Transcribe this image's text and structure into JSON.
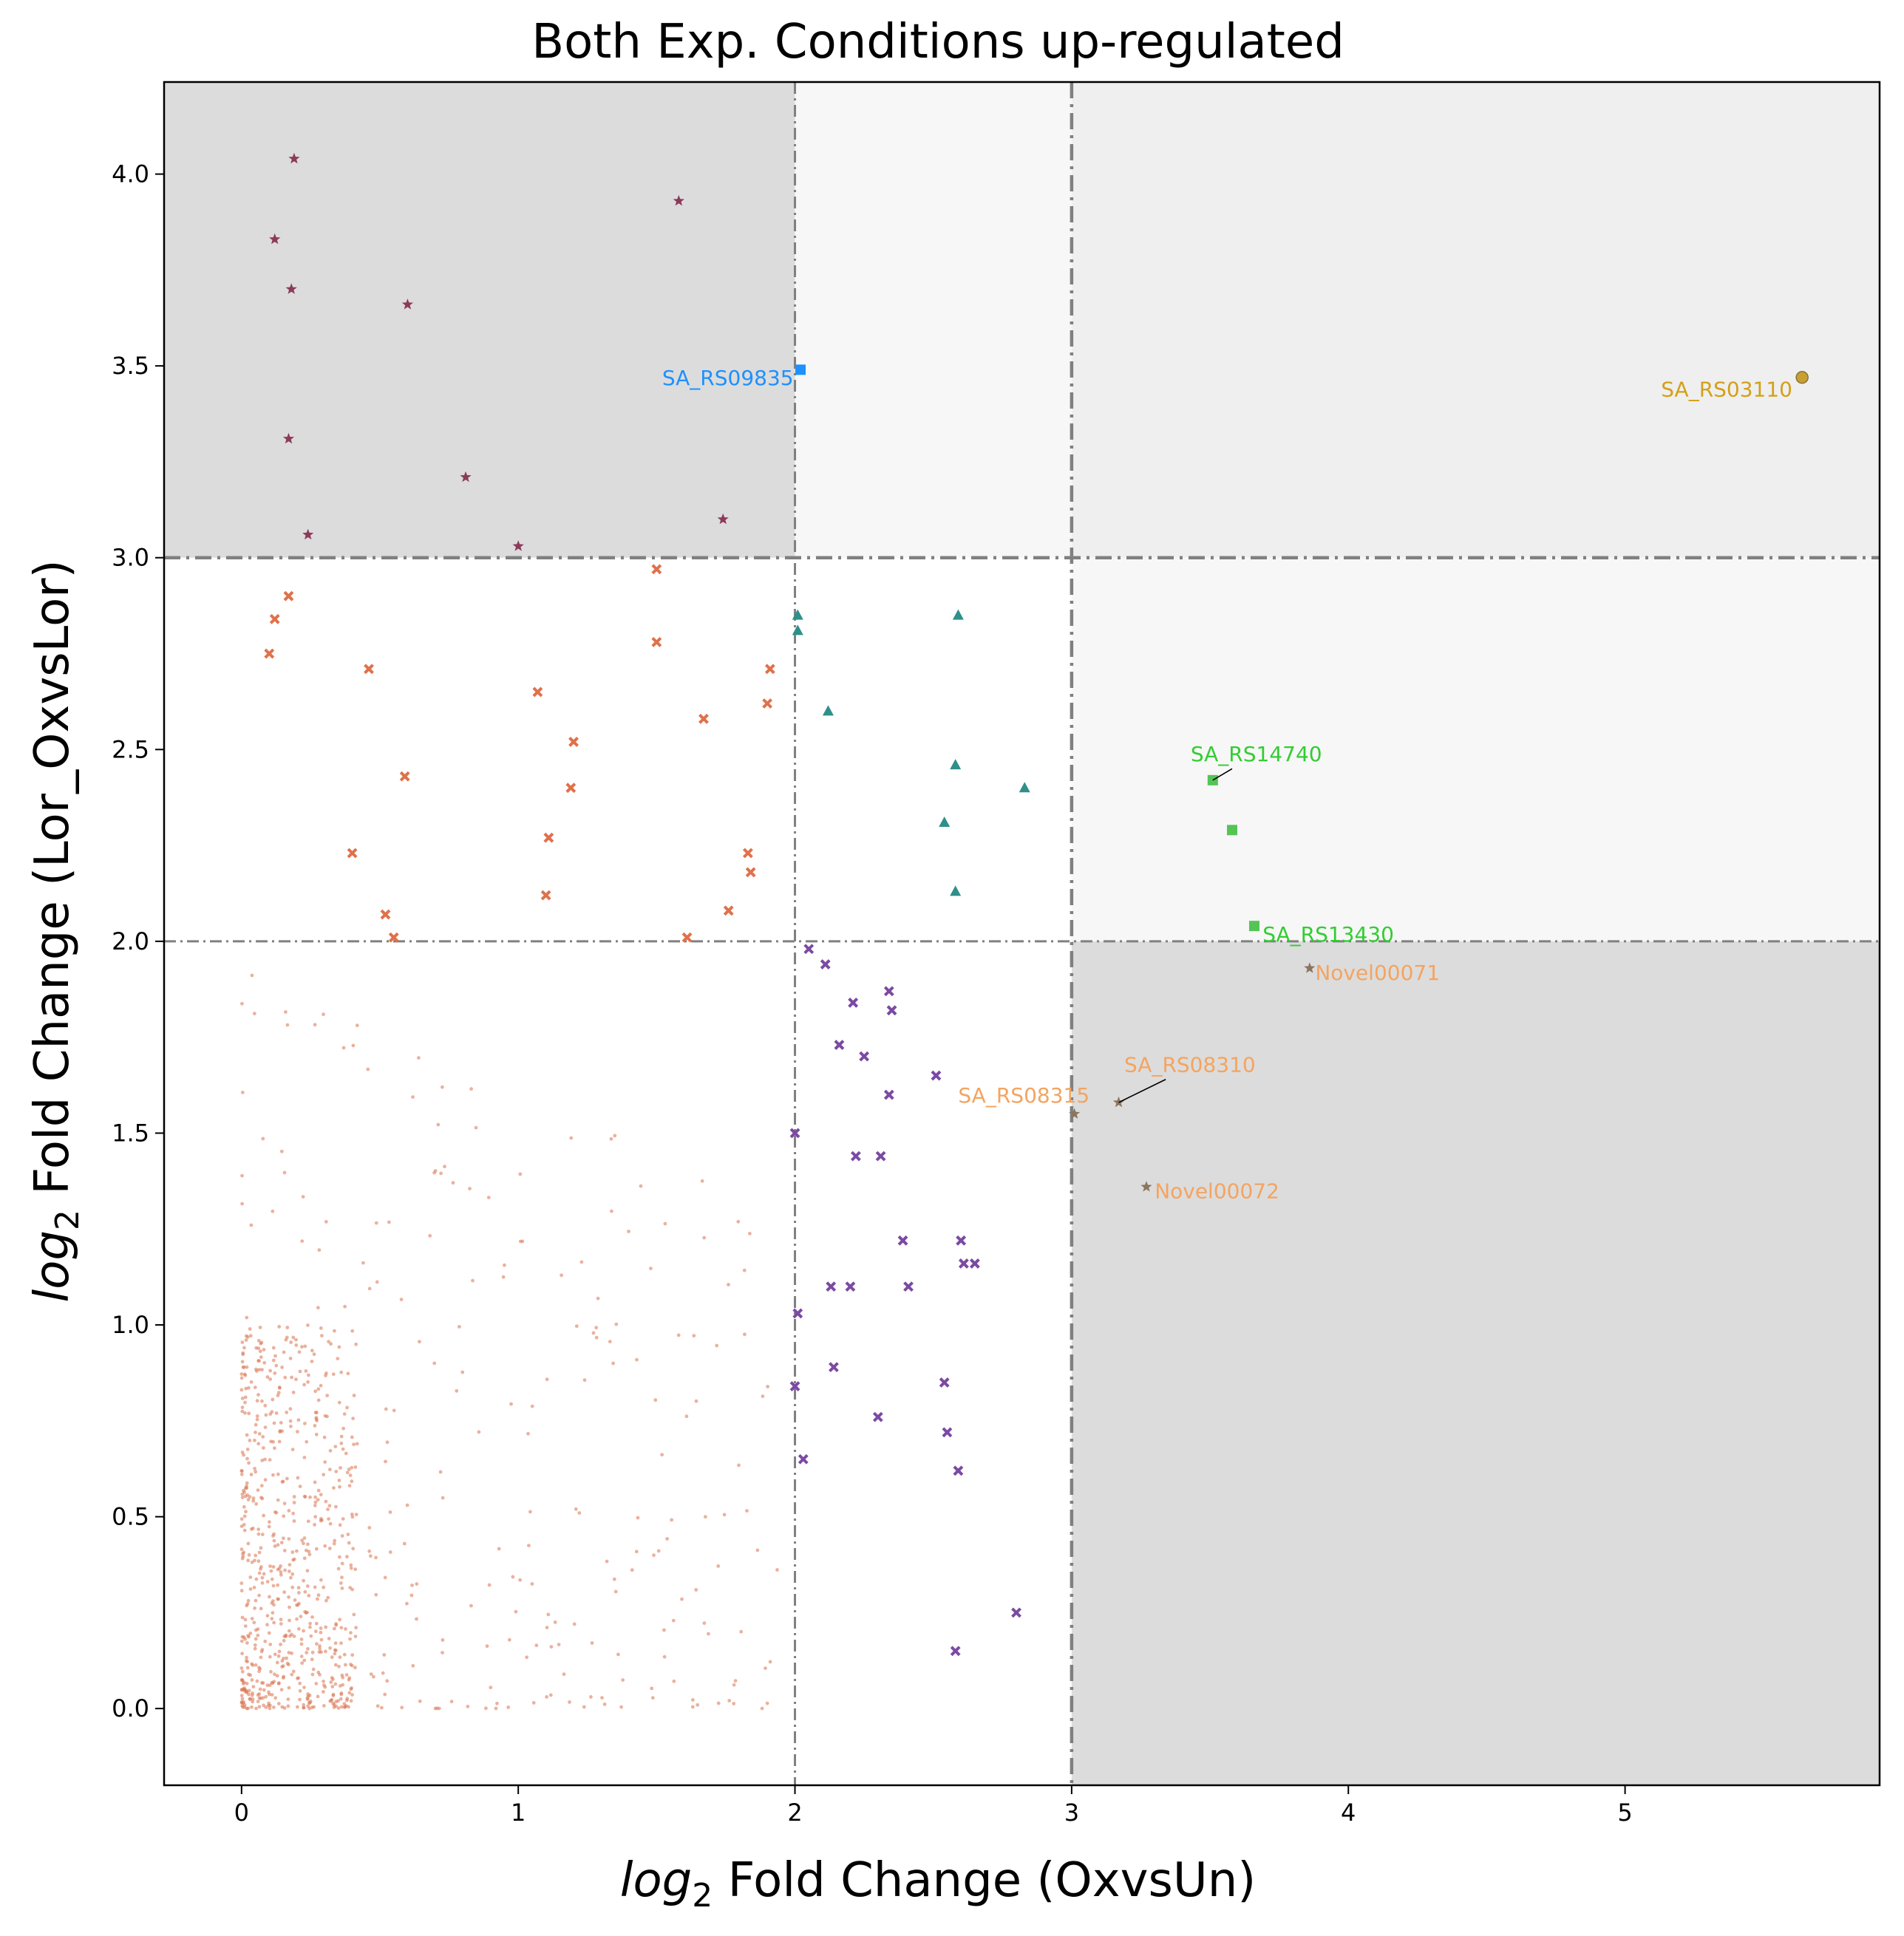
{
  "chart_data": {
    "type": "scatter",
    "title": "Both Exp. Conditions up-regulated",
    "xlabel_italic": "log",
    "xlabel_sub": "2",
    "xlabel_rest": " Fold Change (OxvsUn)",
    "ylabel_italic": "log",
    "ylabel_sub": "2",
    "ylabel_rest": " Fold Change (Lor_OxvsLor)",
    "xlim": [
      -0.28,
      5.92
    ],
    "ylim": [
      -0.2,
      4.24
    ],
    "xticks": [
      0,
      1,
      2,
      3,
      4,
      5
    ],
    "xtick_labels": [
      "0",
      "1",
      "2",
      "3",
      "4",
      "5"
    ],
    "yticks": [
      0.0,
      0.5,
      1.0,
      1.5,
      2.0,
      2.5,
      3.0,
      3.5,
      4.0
    ],
    "ytick_labels": [
      "0.0",
      "0.5",
      "1.0",
      "1.5",
      "2.0",
      "2.5",
      "3.0",
      "3.5",
      "4.0"
    ],
    "thresholds": {
      "x_low": 2,
      "x_high": 3,
      "y_low": 2,
      "y_high": 3
    },
    "regions": [
      {
        "x": [
          -0.28,
          2
        ],
        "y": [
          3,
          4.24
        ],
        "color": "#dcdcdc"
      },
      {
        "x": [
          2,
          3
        ],
        "y": [
          3,
          4.24
        ],
        "color": "#f7f7f7"
      },
      {
        "x": [
          3,
          5.92
        ],
        "y": [
          3,
          4.24
        ],
        "color": "#efefef"
      },
      {
        "x": [
          3,
          5.92
        ],
        "y": [
          2,
          3
        ],
        "color": "#f7f7f7"
      },
      {
        "x": [
          3,
          5.92
        ],
        "y": [
          -0.2,
          2
        ],
        "color": "#dcdcdc"
      }
    ],
    "series": [
      {
        "marker": "star",
        "color": "#8b3a5a",
        "points": [
          [
            0.19,
            4.04
          ],
          [
            0.12,
            3.83
          ],
          [
            0.18,
            3.7
          ],
          [
            0.6,
            3.66
          ],
          [
            1.58,
            3.93
          ],
          [
            0.17,
            3.31
          ],
          [
            0.81,
            3.21
          ],
          [
            0.24,
            3.06
          ],
          [
            1.74,
            3.1
          ],
          [
            1.0,
            3.03
          ]
        ]
      },
      {
        "marker": "x",
        "color": "#e0714a",
        "points": [
          [
            0.1,
            2.75
          ],
          [
            0.12,
            2.84
          ],
          [
            0.17,
            2.9
          ],
          [
            0.46,
            2.71
          ],
          [
            1.5,
            2.97
          ],
          [
            1.5,
            2.78
          ],
          [
            1.07,
            2.65
          ],
          [
            1.67,
            2.58
          ],
          [
            1.91,
            2.71
          ],
          [
            1.9,
            2.62
          ],
          [
            1.2,
            2.52
          ],
          [
            1.19,
            2.4
          ],
          [
            0.59,
            2.43
          ],
          [
            1.11,
            2.27
          ],
          [
            0.4,
            2.23
          ],
          [
            1.83,
            2.23
          ],
          [
            1.84,
            2.18
          ],
          [
            1.1,
            2.12
          ],
          [
            1.76,
            2.08
          ],
          [
            0.52,
            2.07
          ],
          [
            0.55,
            2.01
          ],
          [
            1.61,
            2.01
          ]
        ]
      },
      {
        "marker": "triangle",
        "color": "#2f8f8a",
        "points": [
          [
            2.01,
            2.85
          ],
          [
            2.01,
            2.81
          ],
          [
            2.59,
            2.85
          ],
          [
            2.12,
            2.6
          ],
          [
            2.58,
            2.46
          ],
          [
            2.83,
            2.4
          ],
          [
            2.54,
            2.31
          ],
          [
            2.58,
            2.13
          ]
        ]
      },
      {
        "marker": "x",
        "color": "#7b4aa3",
        "points": [
          [
            2.05,
            1.98
          ],
          [
            2.11,
            1.94
          ],
          [
            2.34,
            1.87
          ],
          [
            2.35,
            1.82
          ],
          [
            2.21,
            1.84
          ],
          [
            2.16,
            1.73
          ],
          [
            2.25,
            1.7
          ],
          [
            2.51,
            1.65
          ],
          [
            2.34,
            1.6
          ],
          [
            2.0,
            1.5
          ],
          [
            2.22,
            1.44
          ],
          [
            2.31,
            1.44
          ],
          [
            2.39,
            1.22
          ],
          [
            2.6,
            1.22
          ],
          [
            2.61,
            1.16
          ],
          [
            2.65,
            1.16
          ],
          [
            2.13,
            1.1
          ],
          [
            2.2,
            1.1
          ],
          [
            2.41,
            1.1
          ],
          [
            2.01,
            1.03
          ],
          [
            2.14,
            0.89
          ],
          [
            2.54,
            0.85
          ],
          [
            2.0,
            0.84
          ],
          [
            2.3,
            0.76
          ],
          [
            2.55,
            0.72
          ],
          [
            2.03,
            0.65
          ],
          [
            2.59,
            0.62
          ],
          [
            2.8,
            0.25
          ],
          [
            2.58,
            0.15
          ]
        ]
      },
      {
        "marker": "square",
        "color": "#1e90ff",
        "points": [
          [
            2.02,
            3.49
          ]
        ]
      },
      {
        "marker": "circle",
        "color": "#c8a030",
        "points": [
          [
            5.64,
            3.47
          ]
        ]
      },
      {
        "marker": "square",
        "color": "#55c455",
        "points": [
          [
            3.51,
            2.42
          ],
          [
            3.58,
            2.29
          ],
          [
            3.66,
            2.04
          ]
        ]
      },
      {
        "marker": "star",
        "color": "#8a7560",
        "points": [
          [
            3.86,
            1.93
          ],
          [
            3.17,
            1.58
          ],
          [
            3.01,
            1.55
          ],
          [
            3.27,
            1.36
          ]
        ]
      }
    ],
    "annotations": [
      {
        "text": "SA_RS09835",
        "x": 1.52,
        "y": 3.45,
        "color": "#1e90ff"
      },
      {
        "text": "SA_RS03110",
        "x": 5.13,
        "y": 3.42,
        "color": "#d4a017"
      },
      {
        "text": "SA_RS14740",
        "x": 3.43,
        "y": 2.47,
        "color": "#32cd32"
      },
      {
        "text": "SA_RS13430",
        "x": 3.69,
        "y": 2.0,
        "color": "#32cd32"
      },
      {
        "text": "Novel00071",
        "x": 3.88,
        "y": 1.9,
        "color": "#f4a460"
      },
      {
        "text": "SA_RS08310",
        "x": 3.19,
        "y": 1.66,
        "color": "#f4a460"
      },
      {
        "text": "SA_RS08315",
        "x": 2.59,
        "y": 1.58,
        "color": "#f4a460"
      },
      {
        "text": "Novel00072",
        "x": 3.3,
        "y": 1.33,
        "color": "#f4a460"
      }
    ],
    "connectors": [
      {
        "from": [
          3.51,
          2.42
        ],
        "to": [
          3.58,
          2.45
        ]
      },
      {
        "from": [
          3.17,
          1.58
        ],
        "to": [
          3.34,
          1.64
        ]
      }
    ],
    "background_cloud": {
      "color": "#d9734f",
      "count": 900,
      "dense": {
        "x_max": 0.42,
        "y_max": 1.0,
        "share": 0.7
      },
      "sparse": {
        "x_max": 1.95,
        "y_max": 1.98
      }
    }
  }
}
